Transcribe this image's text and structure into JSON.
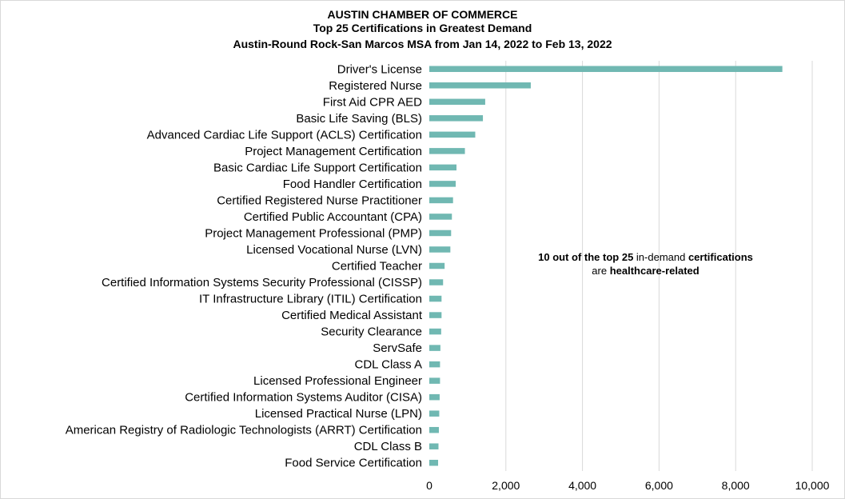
{
  "chart_data": {
    "type": "bar",
    "orientation": "horizontal",
    "title": "AUSTIN CHAMBER OF COMMERCE",
    "subtitle": "Top 25 Certifications in Greatest Demand",
    "subtitle2": "Austin-Round Rock-San Marcos MSA from Jan 14, 2022 to Feb 13, 2022",
    "categories": [
      "Driver's License",
      "Registered Nurse",
      "First Aid CPR AED",
      "Basic Life Saving (BLS)",
      "Advanced Cardiac Life Support (ACLS) Certification",
      "Project Management Certification",
      "Basic Cardiac Life Support Certification",
      "Food Handler Certification",
      "Certified Registered Nurse Practitioner",
      "Certified Public Accountant (CPA)",
      "Project Management Professional (PMP)",
      "Licensed Vocational Nurse (LVN)",
      "Certified Teacher",
      "Certified Information Systems Security Professional (CISSP)",
      "IT Infrastructure Library (ITIL) Certification",
      "Certified Medical Assistant",
      "Security Clearance",
      "ServSafe",
      "CDL Class A",
      "Licensed Professional Engineer",
      "Certified Information Systems Auditor (CISA)",
      "Licensed Practical Nurse (LPN)",
      "American Registry of Radiologic Technologists (ARRT) Certification",
      "CDL Class B",
      "Food Service Certification"
    ],
    "values": [
      9220,
      2650,
      1460,
      1400,
      1200,
      930,
      710,
      690,
      620,
      590,
      570,
      550,
      400,
      360,
      320,
      320,
      310,
      290,
      280,
      280,
      270,
      260,
      250,
      240,
      230
    ],
    "xlim": [
      0,
      10000
    ],
    "xticks": [
      0,
      2000,
      4000,
      6000,
      8000,
      10000
    ],
    "xtick_labels": [
      "0",
      "2,000",
      "4,000",
      "6,000",
      "8,000",
      "10,000"
    ],
    "xlabel": "",
    "ylabel": "",
    "grid": true,
    "bar_color": "#70b8b2",
    "grid_color": "#d9d9d9",
    "legend": "none"
  },
  "annotation": {
    "line1_part1": "10 out of the top 25",
    "line1_part2": " in-demand ",
    "line1_part3": "certifications",
    "line2_part1": "are ",
    "line2_part2": "healthcare-related"
  }
}
